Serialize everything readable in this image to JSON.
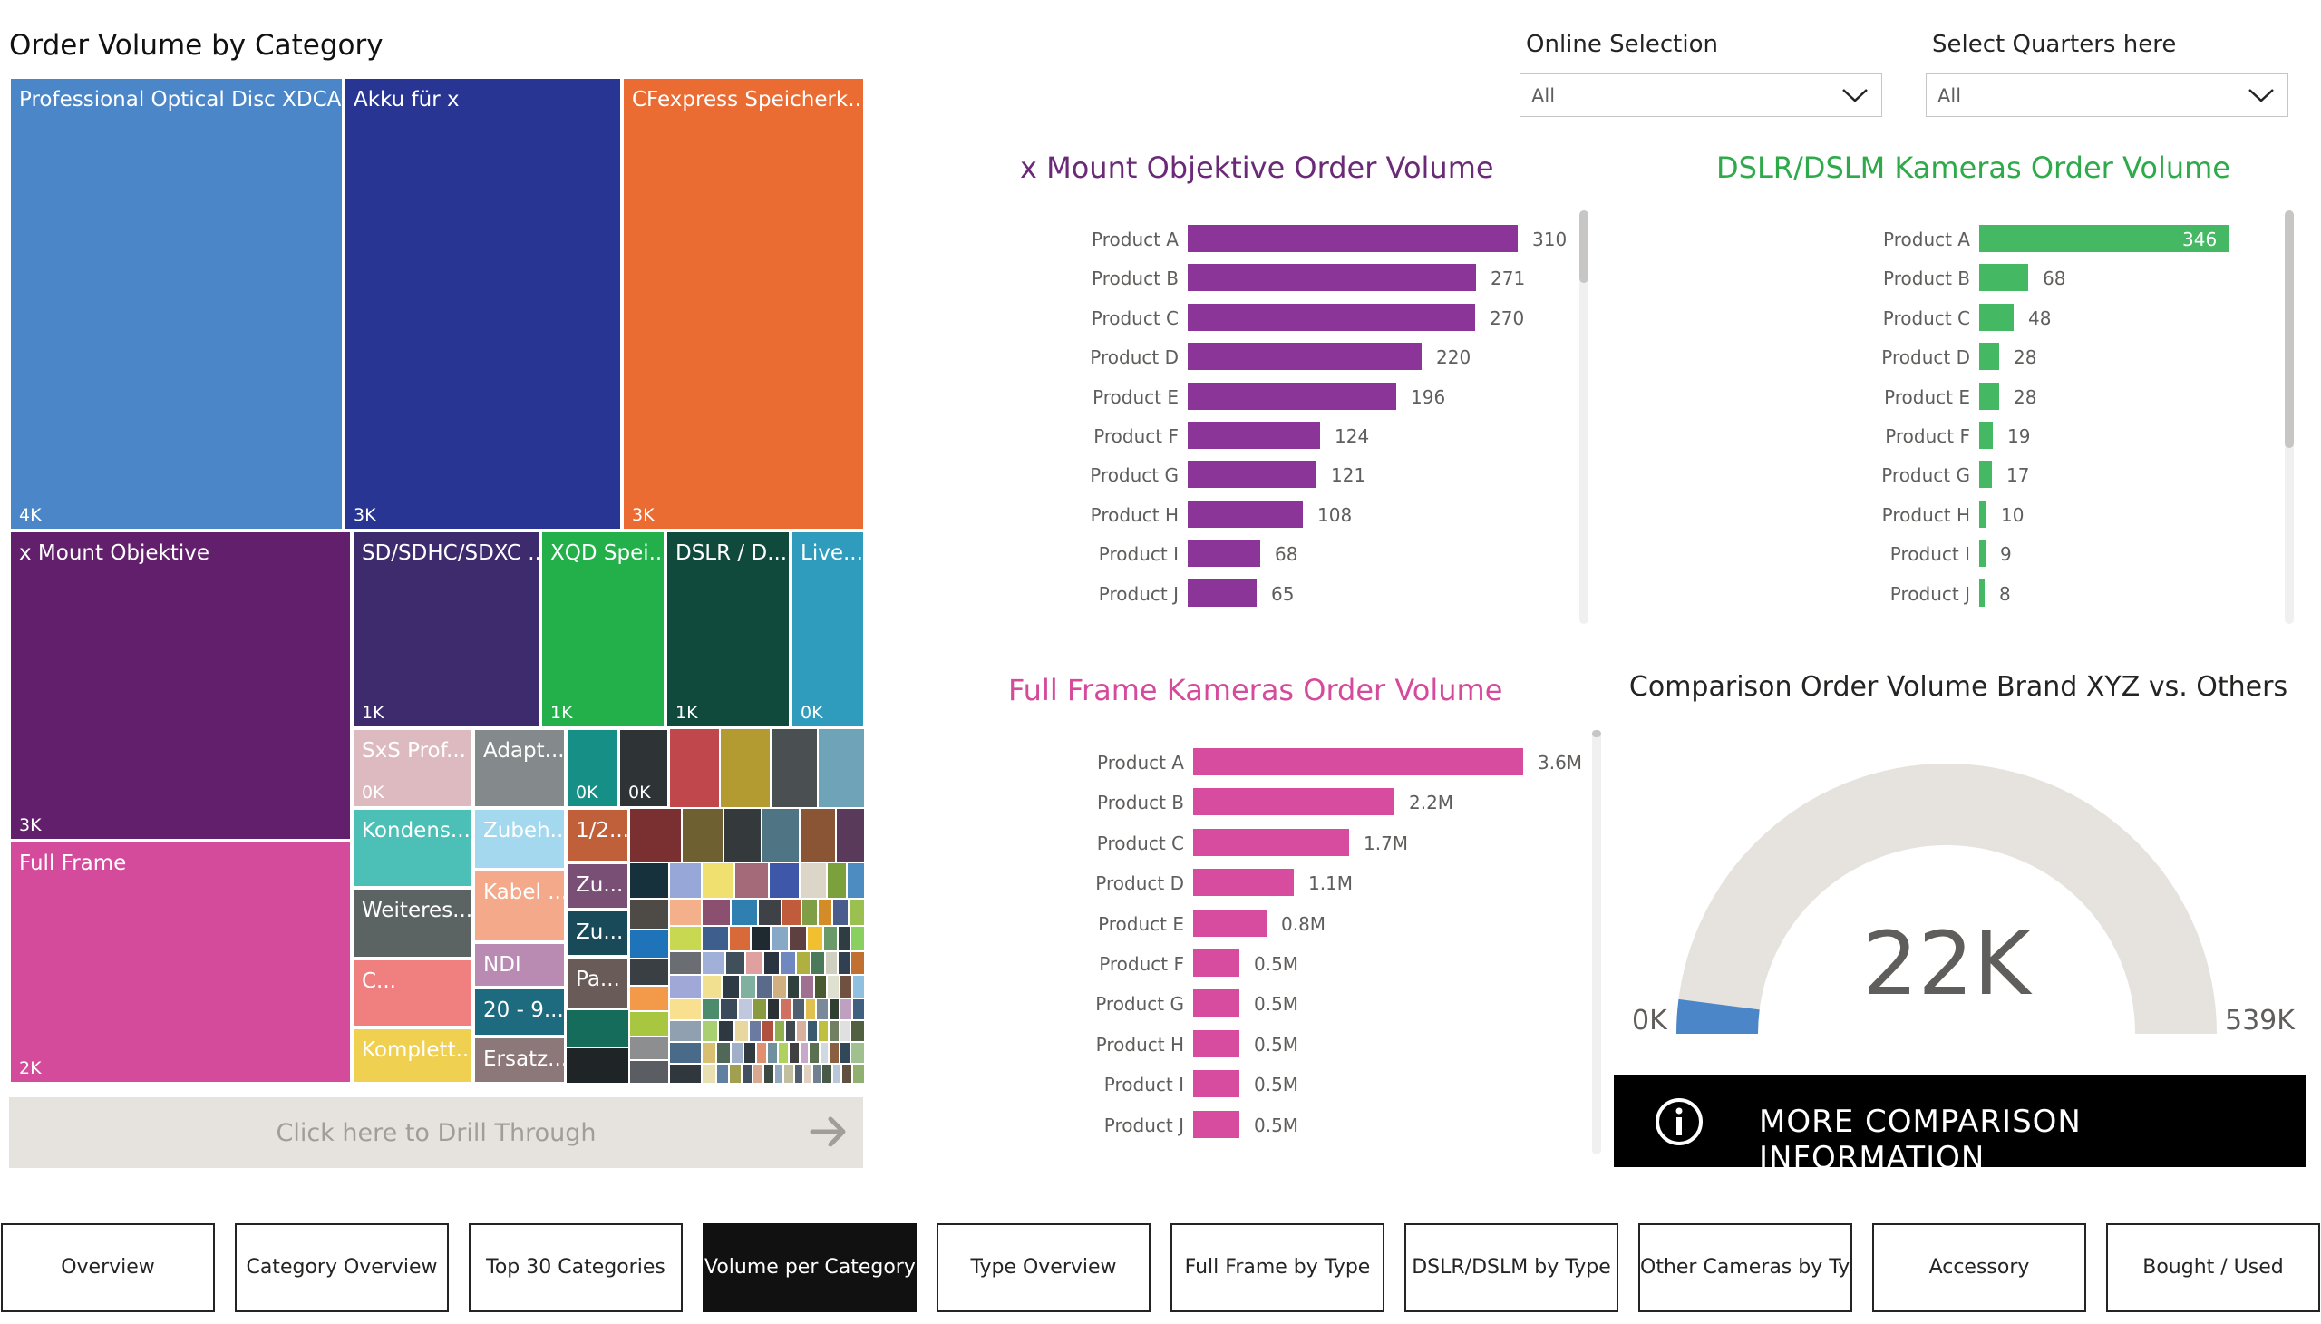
{
  "treemap": {
    "title": "Order Volume by Category",
    "cells": [
      {
        "label": "Professional Optical Disc XDCA...",
        "value": "4K",
        "color": "#4a86c8"
      },
      {
        "label": "Akku für x",
        "value": "3K",
        "color": "#283593"
      },
      {
        "label": "CFexpress Speicherk...",
        "value": "3K",
        "color": "#ea6c33"
      },
      {
        "label": "x Mount Objektive",
        "value": "3K",
        "color": "#62206c"
      },
      {
        "label": "SD/SDHC/SDXC ...",
        "value": "1K",
        "color": "#3d2b6e"
      },
      {
        "label": "XQD Spei...",
        "value": "1K",
        "color": "#23b04a"
      },
      {
        "label": "DSLR / D...",
        "value": "1K",
        "color": "#0f4a3c"
      },
      {
        "label": "Live...",
        "value": "0K",
        "color": "#2f9bbd"
      },
      {
        "label": "Full Frame",
        "value": "2K",
        "color": "#d54b9c"
      },
      {
        "label": "SxS Prof...",
        "value": "0K",
        "color": "#ddb9c0"
      },
      {
        "label": "Adapt...",
        "value": "",
        "color": "#848a8b"
      },
      {
        "label": "",
        "value": "0K",
        "color": "#168f86"
      },
      {
        "label": "",
        "value": "0K",
        "color": "#2e3436"
      },
      {
        "label": "Kondens...",
        "value": "",
        "color": "#4cc0b7"
      },
      {
        "label": "Zubeh...",
        "value": "",
        "color": "#a3d8ee"
      },
      {
        "label": "1/2...",
        "value": "",
        "color": "#c0603a"
      },
      {
        "label": "Weiteres...",
        "value": "",
        "color": "#5b6363"
      },
      {
        "label": "Kabel ...",
        "value": "",
        "color": "#f3a98a"
      },
      {
        "label": "Zu...",
        "value": "",
        "color": "#7a4f76"
      },
      {
        "label": "NDI",
        "value": "",
        "color": "#b98bb2"
      },
      {
        "label": "Zu...",
        "value": "",
        "color": "#184a5a"
      },
      {
        "label": "C...",
        "value": "",
        "color": "#f08080"
      },
      {
        "label": "20 - 9...",
        "value": "",
        "color": "#1e6a7f"
      },
      {
        "label": "Pa...",
        "value": "",
        "color": "#685b58"
      },
      {
        "label": "Komplett...",
        "value": "",
        "color": "#f0d050"
      },
      {
        "label": "Ersatz...",
        "value": "",
        "color": "#8c7878"
      }
    ],
    "drill_label": "Click here to Drill Through"
  },
  "slicers": [
    {
      "label": "Online Selection",
      "value": "All"
    },
    {
      "label": "Select Quarters here",
      "value": "All"
    }
  ],
  "charts": {
    "mount": {
      "title": "x Mount Objektive Order Volume",
      "title_color": "#6b2a78",
      "color": "#8a3597",
      "max": 310,
      "items": [
        {
          "label": "Product A",
          "value": 310,
          "text": "310"
        },
        {
          "label": "Product B",
          "value": 271,
          "text": "271"
        },
        {
          "label": "Product C",
          "value": 270,
          "text": "270"
        },
        {
          "label": "Product D",
          "value": 220,
          "text": "220"
        },
        {
          "label": "Product E",
          "value": 196,
          "text": "196"
        },
        {
          "label": "Product F",
          "value": 124,
          "text": "124"
        },
        {
          "label": "Product G",
          "value": 121,
          "text": "121"
        },
        {
          "label": "Product H",
          "value": 108,
          "text": "108"
        },
        {
          "label": "Product I",
          "value": 68,
          "text": "68"
        },
        {
          "label": "Product J",
          "value": 65,
          "text": "65"
        }
      ]
    },
    "dslr": {
      "title": "DSLR/DSLM Kameras Order Volume",
      "title_color": "#2eaa4a",
      "color": "#45b864",
      "max": 346,
      "items": [
        {
          "label": "Product A",
          "value": 346,
          "text": "346"
        },
        {
          "label": "Product B",
          "value": 68,
          "text": "68"
        },
        {
          "label": "Product C",
          "value": 48,
          "text": "48"
        },
        {
          "label": "Product D",
          "value": 28,
          "text": "28"
        },
        {
          "label": "Product E",
          "value": 28,
          "text": "28"
        },
        {
          "label": "Product F",
          "value": 19,
          "text": "19"
        },
        {
          "label": "Product G",
          "value": 17,
          "text": "17"
        },
        {
          "label": "Product H",
          "value": 10,
          "text": "10"
        },
        {
          "label": "Product I",
          "value": 9,
          "text": "9"
        },
        {
          "label": "Product J",
          "value": 8,
          "text": "8"
        }
      ]
    },
    "fullframe": {
      "title": "Full Frame Kameras Order Volume",
      "title_color": "#d54b9c",
      "color": "#d84c9f",
      "max": 3.6,
      "items": [
        {
          "label": "Product A",
          "value": 3.6,
          "text": "3.6M"
        },
        {
          "label": "Product B",
          "value": 2.2,
          "text": "2.2M"
        },
        {
          "label": "Product C",
          "value": 1.7,
          "text": "1.7M"
        },
        {
          "label": "Product D",
          "value": 1.1,
          "text": "1.1M"
        },
        {
          "label": "Product E",
          "value": 0.8,
          "text": "0.8M"
        },
        {
          "label": "Product F",
          "value": 0.5,
          "text": "0.5M"
        },
        {
          "label": "Product G",
          "value": 0.5,
          "text": "0.5M"
        },
        {
          "label": "Product H",
          "value": 0.5,
          "text": "0.5M"
        },
        {
          "label": "Product I",
          "value": 0.5,
          "text": "0.5M"
        },
        {
          "label": "Product J",
          "value": 0.5,
          "text": "0.5M"
        }
      ]
    }
  },
  "gauge": {
    "title": "Comparison Order Volume Brand XYZ vs. Others",
    "value_text": "22K",
    "min_text": "0K",
    "max_text": "539K",
    "value": 22,
    "min": 0,
    "max": 539,
    "fill_color": "#4a86c8",
    "track_color": "#e6e3df"
  },
  "more_button": {
    "label": "MORE COMPARISON INFORMATION"
  },
  "nav": [
    {
      "label": "Overview",
      "active": false
    },
    {
      "label": "Category Overview",
      "active": false
    },
    {
      "label": "Top 30 Categories",
      "active": false
    },
    {
      "label": "Volume per Category",
      "active": true
    },
    {
      "label": "Type Overview",
      "active": false
    },
    {
      "label": "Full Frame by Type",
      "active": false
    },
    {
      "label": "DSLR/DSLM by Type",
      "active": false
    },
    {
      "label": "Other Cameras by Type",
      "active": false
    },
    {
      "label": "Accessory",
      "active": false
    },
    {
      "label": "Bought / Used",
      "active": false
    }
  ]
}
